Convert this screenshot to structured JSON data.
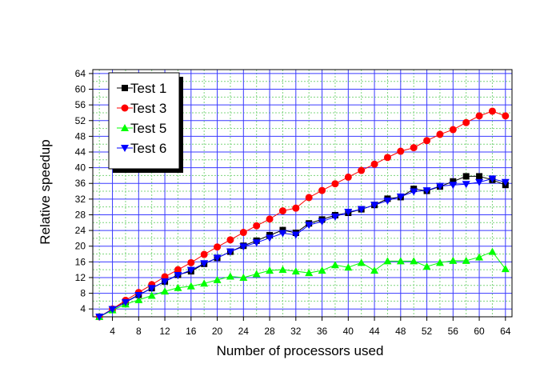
{
  "chart_data": {
    "type": "line",
    "title": "",
    "xlabel": "Number of processors used",
    "ylabel": "Relative speedup",
    "xlim": [
      1,
      65
    ],
    "ylim": [
      2,
      65
    ],
    "x_ticks": [
      4,
      8,
      12,
      16,
      20,
      24,
      28,
      32,
      36,
      40,
      44,
      48,
      52,
      56,
      60,
      64
    ],
    "y_ticks": [
      4,
      8,
      12,
      16,
      20,
      24,
      28,
      32,
      36,
      40,
      44,
      48,
      52,
      56,
      60,
      64
    ],
    "grid": true,
    "legend_position": "top-left",
    "x": [
      2,
      4,
      6,
      8,
      10,
      12,
      14,
      16,
      18,
      20,
      22,
      24,
      26,
      28,
      30,
      32,
      34,
      36,
      38,
      40,
      42,
      44,
      46,
      48,
      50,
      52,
      54,
      56,
      58,
      60,
      62,
      64
    ],
    "series": [
      {
        "name": "Test 1",
        "color": "#000000",
        "marker": "square",
        "values": [
          2.0,
          3.9,
          5.8,
          7.6,
          9.3,
          11.0,
          12.7,
          13.6,
          15.5,
          17.0,
          18.6,
          20.1,
          21.4,
          22.8,
          24.1,
          23.4,
          25.8,
          26.8,
          27.9,
          28.5,
          29.4,
          30.5,
          32.1,
          32.5,
          34.6,
          34.1,
          35.2,
          36.5,
          37.8,
          37.8,
          36.9,
          35.6
        ]
      },
      {
        "name": "Test 3",
        "color": "#ff0000",
        "marker": "circle",
        "values": [
          2.0,
          4.0,
          6.2,
          8.2,
          10.2,
          12.2,
          14.0,
          15.8,
          17.9,
          19.8,
          21.6,
          23.5,
          25.2,
          26.9,
          29.0,
          29.7,
          32.4,
          34.2,
          35.9,
          37.6,
          39.3,
          40.9,
          42.6,
          44.2,
          45.1,
          46.9,
          48.5,
          49.7,
          51.5,
          53.2,
          54.4,
          53.2
        ]
      },
      {
        "name": "Test 5",
        "color": "#00ff00",
        "marker": "triangle-up",
        "values": [
          2.0,
          3.7,
          5.2,
          6.3,
          7.4,
          8.5,
          9.4,
          9.8,
          10.5,
          11.4,
          12.3,
          12.0,
          12.9,
          13.8,
          14.0,
          13.6,
          13.2,
          13.8,
          15.2,
          14.6,
          15.8,
          13.8,
          16.2,
          16.2,
          16.2,
          14.8,
          15.8,
          16.3,
          16.3,
          17.2,
          18.6,
          14.2
        ]
      },
      {
        "name": "Test 6",
        "color": "#0000ff",
        "marker": "triangle-down",
        "values": [
          2.0,
          3.9,
          5.7,
          7.5,
          9.3,
          11.0,
          12.6,
          13.9,
          15.6,
          17.0,
          18.6,
          19.9,
          20.9,
          22.1,
          23.3,
          22.9,
          25.4,
          26.3,
          27.5,
          28.7,
          29.4,
          30.5,
          31.6,
          32.6,
          33.9,
          34.2,
          35.3,
          35.6,
          35.8,
          36.3,
          37.2,
          36.3
        ]
      }
    ]
  }
}
